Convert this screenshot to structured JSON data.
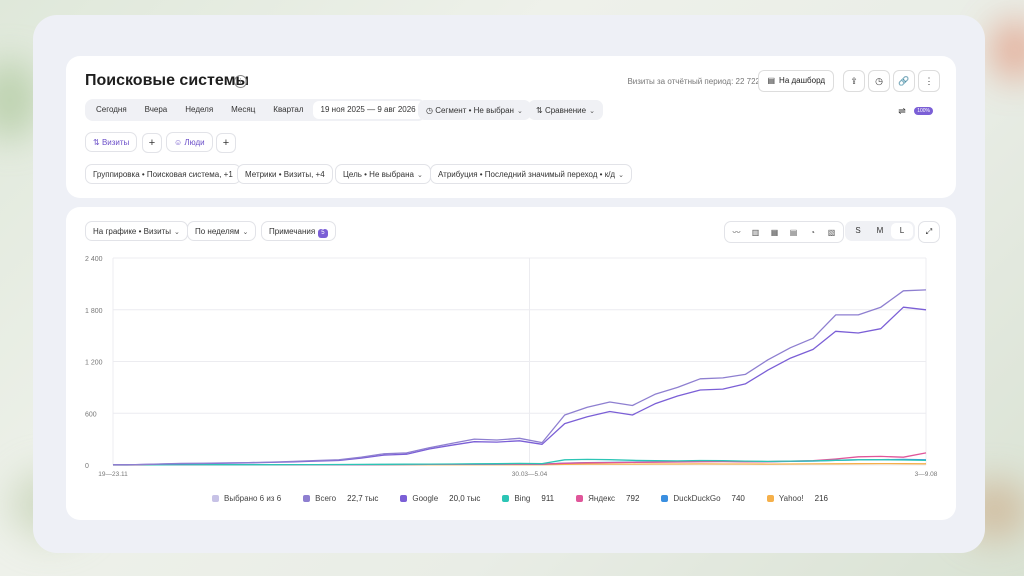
{
  "report": {
    "title": "Поисковые системы",
    "visits_period": "Визиты за отчётный период: 22 722",
    "dashboard_button": "На дашборд",
    "periods": [
      "Сегодня",
      "Вчера",
      "Неделя",
      "Месяц",
      "Квартал",
      "19 ноя 2025 — 9 авг 2026"
    ],
    "segment": "Сегмент • Не выбран",
    "comparison": "Сравнение",
    "visits_tag": "Визиты",
    "people_tag": "Люди",
    "grouping": "Группировка • Поисковая система, +1",
    "metrics": "Метрики • Визиты, +4",
    "goal": "Цель • Не выбрана",
    "attribution": "Атрибуция • Последний значимый переход • к/д",
    "sampling": "100%"
  },
  "chart_panel": {
    "on_chart": "На графике • Визиты",
    "by_weeks": "По неделям",
    "notes": "Примечания",
    "notes_count": "5",
    "sizes": [
      "S",
      "M",
      "L"
    ],
    "active_size": "L"
  },
  "legend": {
    "selected": "Выбрано 6 из 6",
    "items": [
      {
        "name": "Всего",
        "value": "22,7 тыс",
        "color": "#8e7fd0"
      },
      {
        "name": "Google",
        "value": "20,0 тыс",
        "color": "#7b5fd6"
      },
      {
        "name": "Bing",
        "value": "911",
        "color": "#2cc5b5"
      },
      {
        "name": "Яндекс",
        "value": "792",
        "color": "#e0569a"
      },
      {
        "name": "DuckDuckGo",
        "value": "740",
        "color": "#3a8fe0"
      },
      {
        "name": "Yahoo!",
        "value": "216",
        "color": "#f5b04a"
      }
    ]
  },
  "chart_data": {
    "type": "line",
    "ylim": [
      0,
      2400
    ],
    "yticks": [
      "2 400",
      "1 800",
      "1 200",
      "600",
      "0"
    ],
    "xtick_labels": [
      "19—23.11",
      "30.03—5.04",
      "3—9.08"
    ],
    "series": [
      {
        "name": "Всего",
        "values": [
          2,
          3,
          12,
          18,
          20,
          24,
          28,
          34,
          42,
          52,
          60,
          92,
          130,
          140,
          200,
          250,
          300,
          290,
          310,
          260,
          580,
          670,
          730,
          690,
          820,
          900,
          1000,
          1010,
          1050,
          1220,
          1360,
          1470,
          1740,
          1740,
          1830,
          2020,
          2030
        ]
      },
      {
        "name": "Google",
        "values": [
          2,
          3,
          10,
          15,
          17,
          21,
          24,
          30,
          37,
          45,
          52,
          80,
          115,
          125,
          185,
          230,
          270,
          265,
          280,
          240,
          480,
          560,
          620,
          580,
          710,
          800,
          870,
          880,
          940,
          1100,
          1240,
          1340,
          1550,
          1530,
          1580,
          1830,
          1800
        ]
      },
      {
        "name": "Bing",
        "values": [
          1,
          1,
          2,
          3,
          3,
          3,
          4,
          4,
          5,
          5,
          6,
          7,
          8,
          9,
          10,
          12,
          14,
          15,
          18,
          16,
          60,
          65,
          62,
          55,
          50,
          48,
          52,
          50,
          45,
          42,
          45,
          48,
          55,
          60,
          62,
          58,
          55
        ]
      },
      {
        "name": "Яндекс",
        "values": [
          1,
          1,
          2,
          2,
          2,
          3,
          3,
          3,
          4,
          4,
          5,
          5,
          6,
          6,
          7,
          8,
          9,
          10,
          11,
          10,
          20,
          25,
          28,
          30,
          32,
          35,
          38,
          40,
          36,
          38,
          45,
          50,
          70,
          95,
          100,
          90,
          140
        ]
      },
      {
        "name": "DuckDuckGo",
        "values": [
          0,
          1,
          1,
          1,
          2,
          2,
          2,
          3,
          3,
          3,
          4,
          4,
          5,
          6,
          7,
          8,
          8,
          9,
          10,
          9,
          22,
          28,
          30,
          34,
          36,
          40,
          42,
          44,
          40,
          38,
          42,
          45,
          55,
          60,
          62,
          65,
          60
        ]
      },
      {
        "name": "Yahoo!",
        "values": [
          0,
          0,
          1,
          1,
          1,
          1,
          1,
          1,
          1,
          2,
          2,
          2,
          2,
          3,
          3,
          3,
          3,
          4,
          4,
          4,
          8,
          10,
          10,
          11,
          12,
          12,
          13,
          12,
          12,
          11,
          12,
          13,
          14,
          15,
          16,
          15,
          14
        ]
      }
    ]
  }
}
